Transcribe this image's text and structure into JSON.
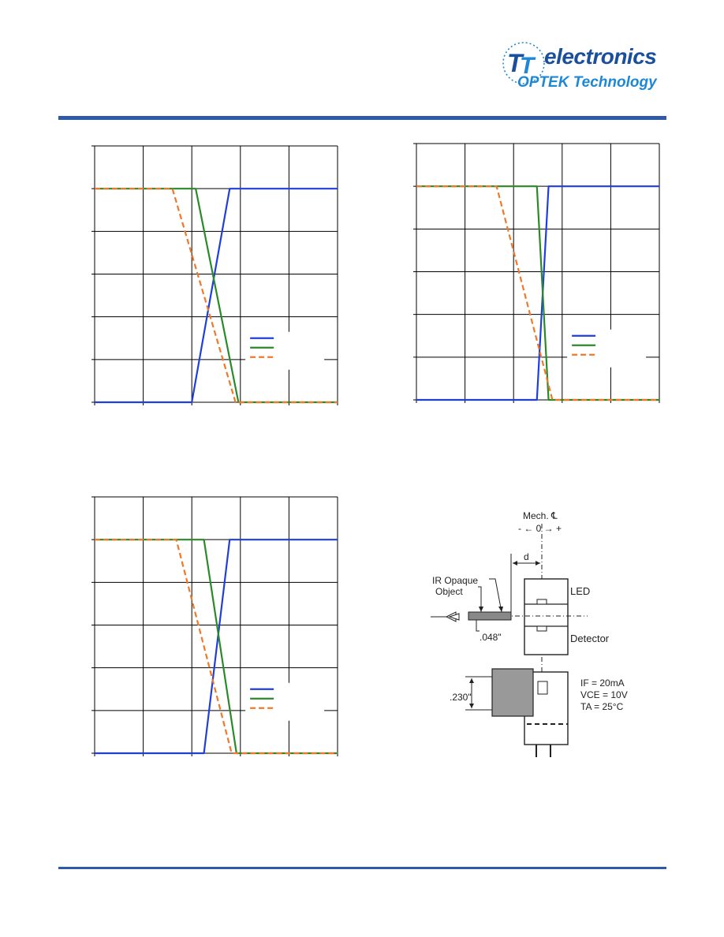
{
  "header": {
    "brand": "electronics",
    "subbrand": "OPTEK Technology",
    "colors": {
      "rule": "#2e5aa8",
      "brand": "#1a4f9c",
      "subbrand": "#1e88d6"
    }
  },
  "chart_data": [
    {
      "type": "line",
      "xlim": [
        0,
        5
      ],
      "ylim": [
        0,
        6
      ],
      "grid": true,
      "legend": "bottom-right",
      "series": [
        {
          "color": "#1f3fd8",
          "style": "solid",
          "x": [
            0,
            2.0,
            2.78,
            5
          ],
          "y": [
            0,
            0,
            5,
            5
          ]
        },
        {
          "color": "#2a8a2a",
          "style": "solid",
          "x": [
            0,
            2.08,
            2.96,
            5
          ],
          "y": [
            5,
            5,
            0,
            0
          ]
        },
        {
          "color": "#f07828",
          "style": "dashed",
          "x": [
            0,
            1.6,
            2.9,
            5
          ],
          "y": [
            5,
            5,
            0,
            0
          ]
        }
      ]
    },
    {
      "type": "line",
      "xlim": [
        0,
        5
      ],
      "ylim": [
        0,
        6
      ],
      "grid": true,
      "legend": "bottom-right",
      "series": [
        {
          "color": "#1f3fd8",
          "style": "solid",
          "x": [
            0,
            2.48,
            2.72,
            5
          ],
          "y": [
            0,
            0,
            5,
            5
          ]
        },
        {
          "color": "#2a8a2a",
          "style": "solid",
          "x": [
            0,
            2.48,
            2.72,
            5
          ],
          "y": [
            5,
            5,
            0,
            0
          ]
        },
        {
          "color": "#f07828",
          "style": "dashed",
          "x": [
            0,
            1.65,
            2.8,
            5
          ],
          "y": [
            5,
            5,
            0,
            0
          ]
        }
      ]
    },
    {
      "type": "line",
      "xlim": [
        0,
        5
      ],
      "ylim": [
        0,
        6
      ],
      "grid": true,
      "legend": "bottom-right",
      "series": [
        {
          "color": "#1f3fd8",
          "style": "solid",
          "x": [
            0,
            2.25,
            2.78,
            5
          ],
          "y": [
            0,
            0,
            5,
            5
          ]
        },
        {
          "color": "#2a8a2a",
          "style": "solid",
          "x": [
            0,
            2.25,
            2.92,
            5
          ],
          "y": [
            5,
            5,
            0,
            0
          ]
        },
        {
          "color": "#f07828",
          "style": "dashed",
          "x": [
            0,
            1.68,
            2.82,
            5
          ],
          "y": [
            5,
            5,
            0,
            0
          ]
        }
      ]
    }
  ],
  "diagram": {
    "mech_center": "Mech. ℄",
    "axis": "- ← 0 → +",
    "distance": "d",
    "object_label_1": "IR Opaque",
    "object_label_2": "Object",
    "thickness": ".048\"",
    "led": "LED",
    "detector": "Detector",
    "height": ".230\"",
    "cond_if": "IF = 20mA",
    "cond_vce": "VCE = 10V",
    "cond_ta": "TA = 25°C"
  }
}
